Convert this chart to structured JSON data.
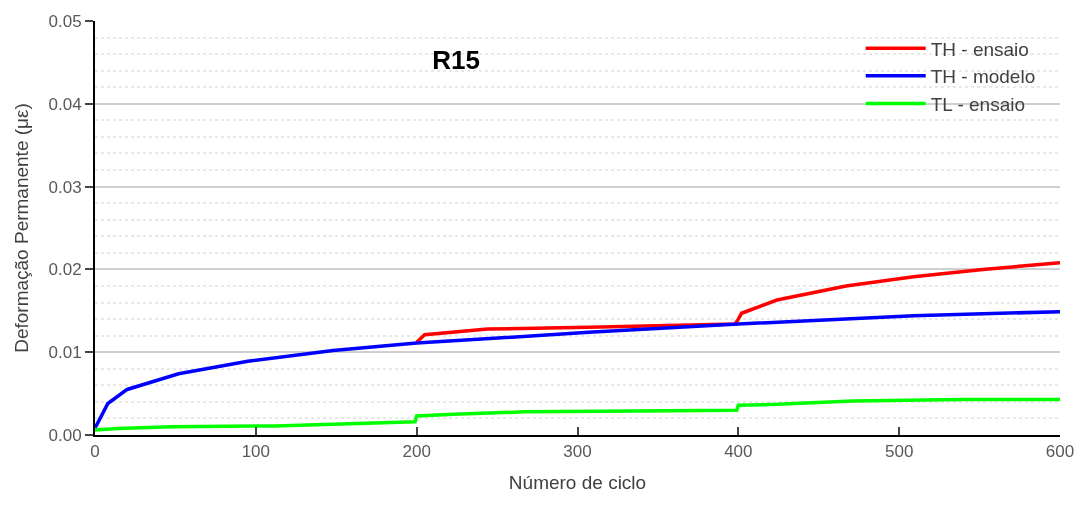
{
  "chart_data": {
    "type": "line",
    "title": "R15",
    "xlabel": "Número de ciclo",
    "ylabel": "Deformação Permanente (με)",
    "xlim": [
      0,
      600
    ],
    "xticks": [
      0,
      100,
      200,
      300,
      400,
      500,
      600
    ],
    "ylim": [
      0,
      0.05
    ],
    "yticks": [
      {
        "value": 0,
        "label": "0.00"
      },
      0.01,
      0.02,
      0.03,
      0.04,
      0.05
    ],
    "grid": "y",
    "legend": "top right",
    "marker": "none",
    "line_style": "solid",
    "series": [
      {
        "name": "TH - ensaio",
        "color": "#ff0000",
        "x": [
          200,
          205,
          244,
          307,
          398,
          400,
          402,
          424,
          467,
          509,
          552,
          600
        ],
        "values": [
          0.0112,
          0.0121,
          0.0128,
          0.013,
          0.0134,
          0.014,
          0.0147,
          0.0163,
          0.018,
          0.0191,
          0.02,
          0.0208
        ]
      },
      {
        "name": "TH - modelo",
        "color": "#0000ff",
        "x": [
          0,
          1,
          8,
          20,
          52,
          95,
          148,
          200,
          307,
          400,
          509,
          600
        ],
        "values": [
          0.0009,
          0.0012,
          0.0038,
          0.0055,
          0.0074,
          0.0089,
          0.0102,
          0.0111,
          0.0124,
          0.0134,
          0.0144,
          0.0149
        ]
      },
      {
        "name": "TL - ensaio",
        "color": "#00ff00",
        "x": [
          0,
          14,
          48,
          112,
          199,
          200,
          223,
          267,
          337,
          399,
          400,
          424,
          471,
          539,
          600
        ],
        "values": [
          0.0006,
          0.0008,
          0.001,
          0.0011,
          0.0016,
          0.0023,
          0.0025,
          0.0028,
          0.0029,
          0.003,
          0.0036,
          0.0037,
          0.0041,
          0.0043,
          0.0043
        ]
      }
    ]
  }
}
